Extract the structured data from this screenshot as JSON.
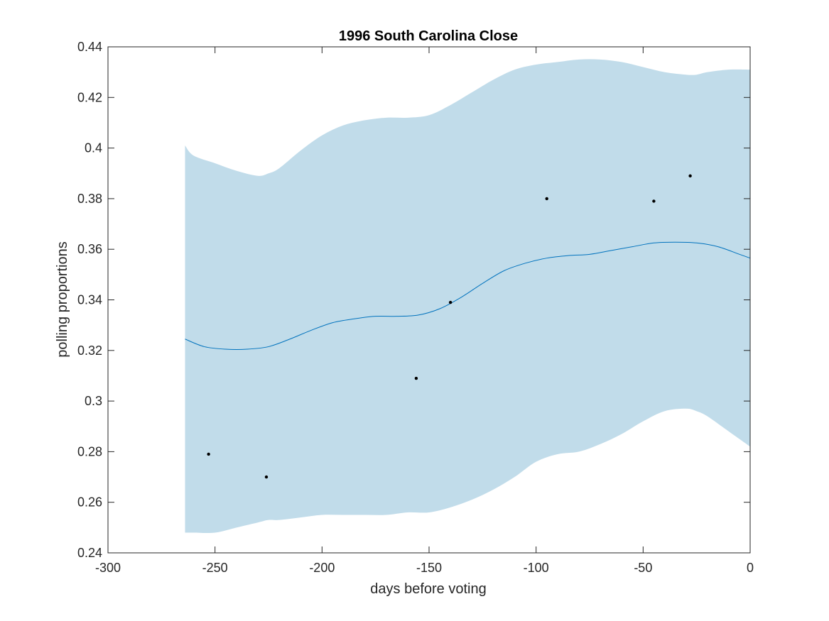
{
  "chart_data": {
    "type": "area",
    "title": "1996 South Carolina Close",
    "xlabel": "days before voting",
    "ylabel": "polling proportions",
    "xlim": [
      -300,
      0
    ],
    "ylim": [
      0.24,
      0.44
    ],
    "xticks": [
      -300,
      -250,
      -200,
      -150,
      -100,
      -50,
      0
    ],
    "xtick_labels": [
      "-300",
      "-250",
      "-200",
      "-150",
      "-100",
      "-50",
      "0"
    ],
    "yticks": [
      0.24,
      0.26,
      0.28,
      0.3,
      0.32,
      0.34,
      0.36,
      0.38,
      0.4,
      0.42,
      0.44
    ],
    "ytick_labels": [
      "0.24",
      "0.26",
      "0.28",
      "0.3",
      "0.32",
      "0.34",
      "0.36",
      "0.38",
      "0.4",
      "0.42",
      "0.44"
    ],
    "grid": false,
    "colors": {
      "band": "#c1dcea",
      "mean": "#0072bd",
      "points": "#000000",
      "axes": "#262626"
    },
    "series": [
      {
        "type": "band",
        "x": [
          -264,
          -260,
          -250,
          -240,
          -230,
          -225,
          -220,
          -210,
          -200,
          -190,
          -180,
          -170,
          -160,
          -150,
          -140,
          -130,
          -120,
          -110,
          -100,
          -90,
          -80,
          -70,
          -60,
          -50,
          -40,
          -30,
          -25,
          -20,
          -10,
          0
        ],
        "upper": [
          0.401,
          0.397,
          0.394,
          0.391,
          0.389,
          0.39,
          0.392,
          0.399,
          0.405,
          0.409,
          0.411,
          0.412,
          0.412,
          0.413,
          0.417,
          0.422,
          0.427,
          0.431,
          0.433,
          0.434,
          0.435,
          0.435,
          0.434,
          0.432,
          0.43,
          0.429,
          0.429,
          0.43,
          0.431,
          0.431
        ],
        "lower": [
          0.248,
          0.248,
          0.248,
          0.25,
          0.252,
          0.253,
          0.253,
          0.254,
          0.255,
          0.255,
          0.255,
          0.255,
          0.256,
          0.256,
          0.258,
          0.261,
          0.265,
          0.27,
          0.276,
          0.279,
          0.28,
          0.283,
          0.287,
          0.292,
          0.296,
          0.297,
          0.296,
          0.294,
          0.288,
          0.282
        ]
      },
      {
        "type": "line",
        "x": [
          -264,
          -255,
          -245,
          -235,
          -225,
          -215,
          -205,
          -195,
          -185,
          -175,
          -165,
          -155,
          -145,
          -135,
          -125,
          -115,
          -105,
          -95,
          -85,
          -75,
          -65,
          -55,
          -45,
          -35,
          -25,
          -15,
          -5,
          0
        ],
        "y": [
          0.3245,
          0.3215,
          0.3205,
          0.3205,
          0.3215,
          0.3245,
          0.328,
          0.331,
          0.3325,
          0.3335,
          0.3335,
          0.334,
          0.3365,
          0.341,
          0.3465,
          0.3515,
          0.3545,
          0.3565,
          0.3575,
          0.358,
          0.3595,
          0.361,
          0.3625,
          0.3628,
          0.3625,
          0.361,
          0.358,
          0.3565
        ]
      },
      {
        "type": "scatter",
        "x": [
          -253,
          -226,
          -156,
          -140,
          -95,
          -45,
          -28
        ],
        "y": [
          0.279,
          0.27,
          0.309,
          0.339,
          0.38,
          0.379,
          0.389
        ]
      }
    ]
  }
}
